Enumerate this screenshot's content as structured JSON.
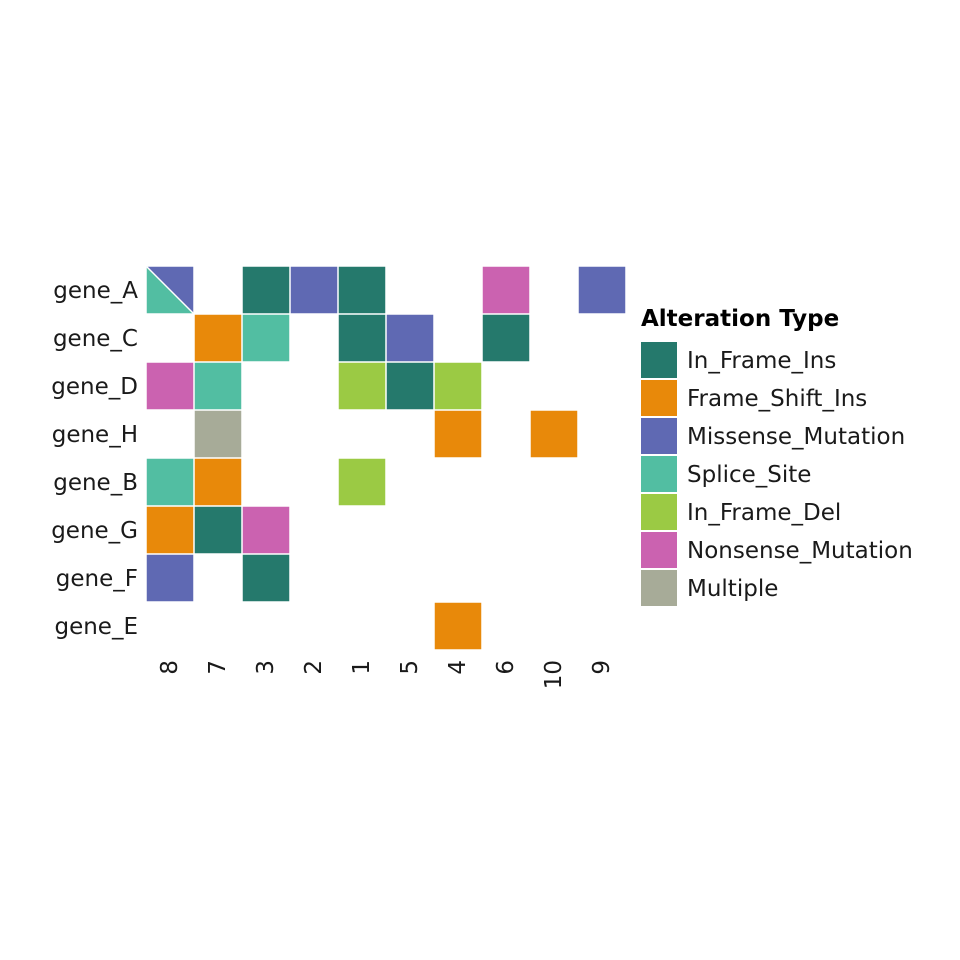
{
  "chart_data": {
    "type": "heatmap",
    "title": "",
    "xlabel": "",
    "ylabel": "",
    "rows": [
      "gene_A",
      "gene_C",
      "gene_D",
      "gene_H",
      "gene_B",
      "gene_G",
      "gene_F",
      "gene_E"
    ],
    "columns": [
      "8",
      "7",
      "3",
      "2",
      "1",
      "5",
      "4",
      "6",
      "10",
      "9"
    ],
    "cells": [
      {
        "row": "gene_A",
        "col": "8",
        "types": [
          "Missense_Mutation",
          "Splice_Site"
        ]
      },
      {
        "row": "gene_A",
        "col": "3",
        "types": [
          "In_Frame_Ins"
        ]
      },
      {
        "row": "gene_A",
        "col": "2",
        "types": [
          "Missense_Mutation"
        ]
      },
      {
        "row": "gene_A",
        "col": "1",
        "types": [
          "In_Frame_Ins"
        ]
      },
      {
        "row": "gene_A",
        "col": "6",
        "types": [
          "Nonsense_Mutation"
        ]
      },
      {
        "row": "gene_A",
        "col": "9",
        "types": [
          "Missense_Mutation"
        ]
      },
      {
        "row": "gene_C",
        "col": "7",
        "types": [
          "Frame_Shift_Ins"
        ]
      },
      {
        "row": "gene_C",
        "col": "3",
        "types": [
          "Splice_Site"
        ]
      },
      {
        "row": "gene_C",
        "col": "1",
        "types": [
          "In_Frame_Ins"
        ]
      },
      {
        "row": "gene_C",
        "col": "5",
        "types": [
          "Missense_Mutation"
        ]
      },
      {
        "row": "gene_C",
        "col": "6",
        "types": [
          "In_Frame_Ins"
        ]
      },
      {
        "row": "gene_D",
        "col": "8",
        "types": [
          "Nonsense_Mutation"
        ]
      },
      {
        "row": "gene_D",
        "col": "7",
        "types": [
          "Splice_Site"
        ]
      },
      {
        "row": "gene_D",
        "col": "1",
        "types": [
          "In_Frame_Del"
        ]
      },
      {
        "row": "gene_D",
        "col": "5",
        "types": [
          "In_Frame_Ins"
        ]
      },
      {
        "row": "gene_D",
        "col": "4",
        "types": [
          "In_Frame_Del"
        ]
      },
      {
        "row": "gene_H",
        "col": "7",
        "types": [
          "Multiple"
        ]
      },
      {
        "row": "gene_H",
        "col": "4",
        "types": [
          "Frame_Shift_Ins"
        ]
      },
      {
        "row": "gene_H",
        "col": "10",
        "types": [
          "Frame_Shift_Ins"
        ]
      },
      {
        "row": "gene_B",
        "col": "8",
        "types": [
          "Splice_Site"
        ]
      },
      {
        "row": "gene_B",
        "col": "7",
        "types": [
          "Frame_Shift_Ins"
        ]
      },
      {
        "row": "gene_B",
        "col": "1",
        "types": [
          "In_Frame_Del"
        ]
      },
      {
        "row": "gene_G",
        "col": "8",
        "types": [
          "Frame_Shift_Ins"
        ]
      },
      {
        "row": "gene_G",
        "col": "7",
        "types": [
          "In_Frame_Ins"
        ]
      },
      {
        "row": "gene_G",
        "col": "3",
        "types": [
          "Nonsense_Mutation"
        ]
      },
      {
        "row": "gene_F",
        "col": "8",
        "types": [
          "Missense_Mutation"
        ]
      },
      {
        "row": "gene_F",
        "col": "3",
        "types": [
          "In_Frame_Ins"
        ]
      },
      {
        "row": "gene_E",
        "col": "4",
        "types": [
          "Frame_Shift_Ins"
        ]
      }
    ],
    "legend": {
      "title": "Alteration Type",
      "placement": "right",
      "entries": [
        {
          "label": "In_Frame_Ins",
          "color": "#25796c"
        },
        {
          "label": "Frame_Shift_Ins",
          "color": "#e8890a"
        },
        {
          "label": "Missense_Mutation",
          "color": "#5f69b3"
        },
        {
          "label": "Splice_Site",
          "color": "#52bea2"
        },
        {
          "label": "In_Frame_Del",
          "color": "#9bca44"
        },
        {
          "label": "Nonsense_Mutation",
          "color": "#cb62b0"
        },
        {
          "label": "Multiple",
          "color": "#a7ab98"
        }
      ]
    },
    "grid": false
  }
}
